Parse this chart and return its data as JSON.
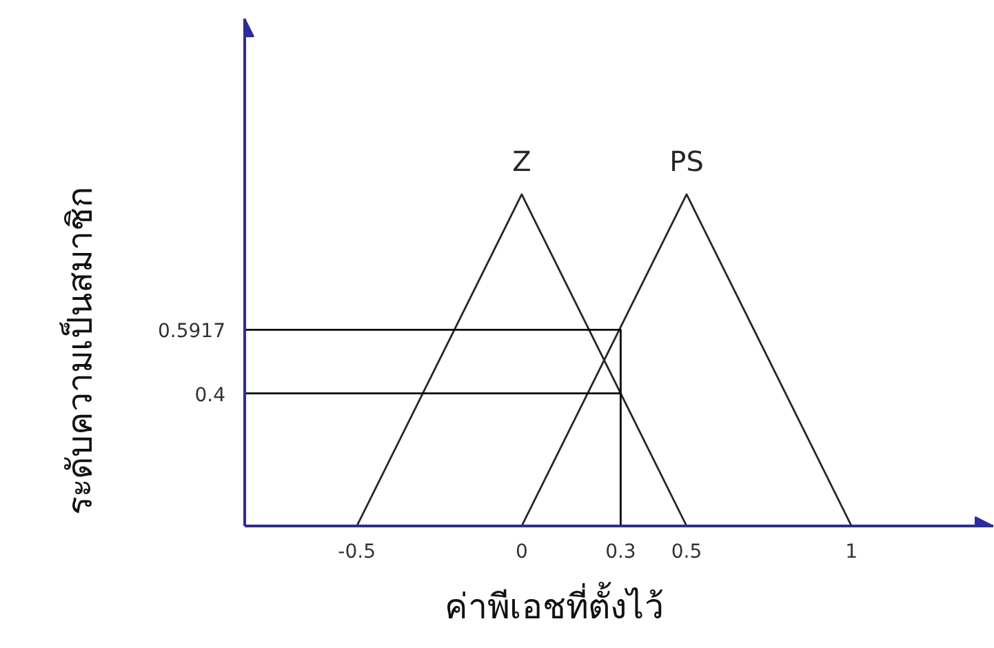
{
  "chart_data": {
    "type": "line",
    "xlabel": "ค่าพีเอชที่ตั้งไว้",
    "ylabel": "ระดับความเป็นสมาชิก",
    "series": [
      {
        "name": "Z",
        "color": "#262626",
        "x": [
          -0.5,
          0,
          0.5
        ],
        "values": [
          0,
          1,
          0
        ]
      },
      {
        "name": "PS",
        "color": "#262626",
        "x": [
          0,
          0.5,
          1
        ],
        "values": [
          0,
          1,
          0
        ]
      },
      {
        "color": "#000000",
        "x": [
          -0.84,
          0.3,
          0.3
        ],
        "values": [
          0.5917,
          0.5917,
          0
        ]
      },
      {
        "color": "#000000",
        "x": [
          -0.84,
          0.3
        ],
        "values": [
          0.4,
          0.4
        ]
      }
    ],
    "xlim": [
      -0.84,
      1.43
    ],
    "ylim": [
      0,
      1.53
    ],
    "xticks": [
      -0.5,
      0,
      0.3,
      0.5,
      1
    ],
    "yticks": [
      0.4,
      0.5917
    ],
    "grid": false,
    "line_style": "solid"
  }
}
